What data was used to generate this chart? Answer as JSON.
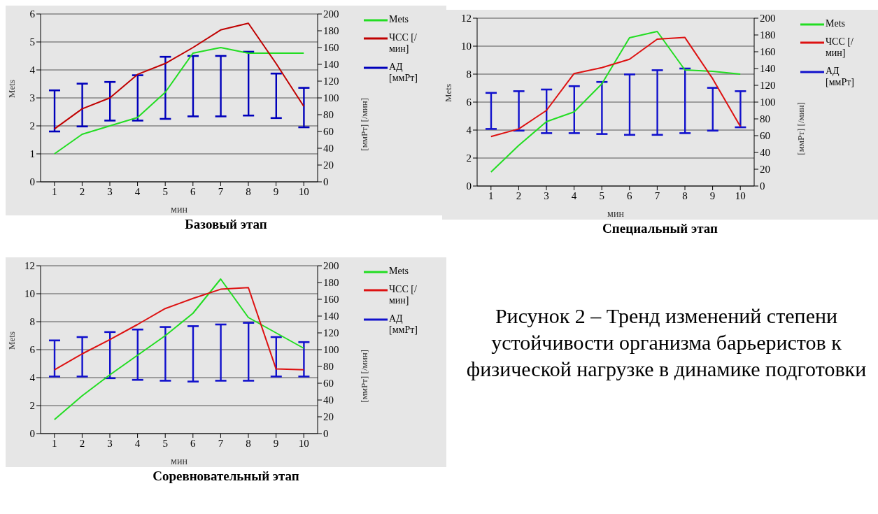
{
  "chart_data": [
    {
      "type": "line",
      "title": "Базовый этап",
      "xlabel": "мин",
      "ylabel": "Mets",
      "y2label": "[ммРт] [/мин]",
      "categories": [
        "1",
        "2",
        "3",
        "4",
        "5",
        "6",
        "7",
        "8",
        "9",
        "10"
      ],
      "ylim": [
        0,
        6
      ],
      "yticks": [
        0,
        1,
        2,
        3,
        4,
        5,
        6
      ],
      "y2lim": [
        0,
        200
      ],
      "y2ticks": [
        0,
        20,
        40,
        60,
        80,
        100,
        120,
        140,
        160,
        180,
        200
      ],
      "grid": "y",
      "legend": "right",
      "series": [
        {
          "name": "Mets",
          "type": "line",
          "color": "#22dd22",
          "values": [
            1,
            1.7,
            2.0,
            2.3,
            3.2,
            4.6,
            4.8,
            4.6,
            4.6,
            4.6
          ]
        },
        {
          "name": "ЧСС [/мин]",
          "type": "line",
          "axis": "y2",
          "color": "#c00000",
          "values": [
            63,
            87,
            100,
            128,
            141,
            160,
            181,
            189,
            141,
            90
          ]
        },
        {
          "name": "АД [ммРт]",
          "type": "bar",
          "axis": "y2",
          "color": "#0000bb",
          "base": [
            60,
            66,
            73,
            73,
            75,
            78,
            78,
            79,
            76,
            65
          ],
          "values": [
            49,
            51,
            46,
            54,
            74,
            72,
            72,
            76,
            53,
            47
          ]
        }
      ]
    },
    {
      "type": "line",
      "title": "Специальный этап",
      "xlabel": "мин",
      "ylabel": "Mets",
      "y2label": "[ммРт] [/мин]",
      "categories": [
        "1",
        "2",
        "3",
        "4",
        "5",
        "6",
        "7",
        "8",
        "9",
        "10"
      ],
      "ylim": [
        0,
        12
      ],
      "yticks": [
        0,
        2,
        4,
        6,
        8,
        10,
        12
      ],
      "y2lim": [
        0,
        200
      ],
      "y2ticks": [
        0,
        20,
        40,
        60,
        80,
        100,
        120,
        140,
        160,
        180,
        200
      ],
      "grid": "y",
      "legend": "right",
      "series": [
        {
          "name": "Mets",
          "type": "line",
          "color": "#22dd22",
          "values": [
            1,
            2.9,
            4.6,
            5.3,
            7.3,
            10.6,
            11.05,
            8.3,
            8.2,
            8.0
          ]
        },
        {
          "name": "ЧСС [/мин]",
          "type": "line",
          "axis": "y2",
          "color": "#dd1111",
          "values": [
            59,
            68,
            90,
            134,
            141,
            151,
            175,
            177,
            128,
            71
          ]
        },
        {
          "name": "АД [ммРт]",
          "type": "bar",
          "axis": "y2",
          "color": "#1111cc",
          "base": [
            68,
            66,
            63,
            63,
            62,
            61,
            61,
            63,
            66,
            70
          ],
          "values": [
            43,
            47,
            52,
            56,
            62,
            72,
            77,
            77,
            51,
            43
          ]
        }
      ]
    },
    {
      "type": "line",
      "title": "Соревновательный этап",
      "xlabel": "мин",
      "ylabel": "Mets",
      "y2label": "[ммРт] [/мин]",
      "categories": [
        "1",
        "2",
        "3",
        "4",
        "5",
        "6",
        "7",
        "8",
        "9",
        "10"
      ],
      "ylim": [
        0,
        12
      ],
      "yticks": [
        0,
        2,
        4,
        6,
        8,
        10,
        12
      ],
      "y2lim": [
        0,
        200
      ],
      "y2ticks": [
        0,
        20,
        40,
        60,
        80,
        100,
        120,
        140,
        160,
        180,
        200
      ],
      "grid": "y",
      "legend": "top right",
      "series": [
        {
          "name": "Mets",
          "type": "line",
          "color": "#22dd22",
          "values": [
            1,
            2.7,
            4.2,
            5.6,
            7.0,
            8.6,
            11.05,
            8.3,
            7.2,
            6.1
          ]
        },
        {
          "name": "ЧСС [/мин]",
          "type": "line",
          "axis": "y2",
          "color": "#dd1111",
          "values": [
            76,
            95,
            112,
            130,
            149,
            161,
            172,
            174,
            77,
            76
          ]
        },
        {
          "name": "АД [ммРт]",
          "type": "bar",
          "axis": "y2",
          "color": "#1111cc",
          "base": [
            68,
            68,
            66,
            64,
            63,
            62,
            63,
            63,
            68,
            68
          ],
          "values": [
            43,
            47,
            55,
            60,
            64,
            66,
            67,
            69,
            47,
            41
          ]
        }
      ]
    },
    {
      "type": "other",
      "title": "Рисунок 2 – Тренд изменений степени устойчивости организма барьеристов к физической нагрузке в динамике подготовки"
    }
  ]
}
